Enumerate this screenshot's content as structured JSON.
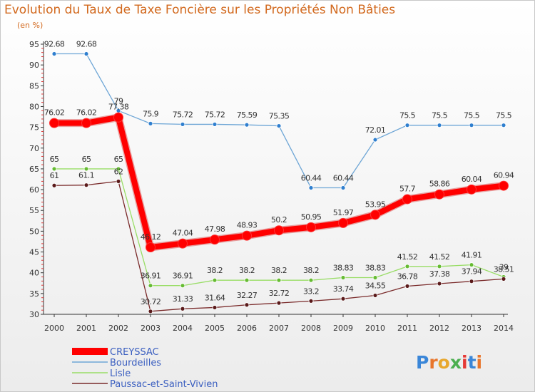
{
  "page": {
    "title": "Evolution du Taux de Taxe Foncière sur les Propriétés Non Bâties",
    "unit_label": "(en %)"
  },
  "chart_data": {
    "type": "line",
    "title": "Evolution du Taux de Taxe Foncière sur les Propriétés Non Bâties",
    "ylabel": "(en %)",
    "xlabel": "",
    "ylim": [
      30,
      95
    ],
    "yticks": [
      30,
      35,
      40,
      45,
      50,
      55,
      60,
      65,
      70,
      75,
      80,
      85,
      90,
      95
    ],
    "grid": false,
    "legend_position": "bottom-left",
    "x": [
      "2000",
      "2001",
      "2002",
      "2003",
      "2004",
      "2005",
      "2006",
      "2007",
      "2008",
      "2009",
      "2010",
      "2011",
      "2012",
      "2013",
      "2014"
    ],
    "series": [
      {
        "name": "CREYSSAC",
        "color": "#ff0000",
        "point_color": "#ff0000",
        "emphasis": true,
        "values": [
          76.02,
          76.02,
          77.38,
          46.12,
          47.04,
          47.98,
          48.93,
          50.2,
          50.95,
          51.97,
          53.95,
          57.7,
          58.86,
          60.04,
          60.94
        ],
        "labels": [
          "76.02",
          "76.02",
          "77.38",
          "46.12",
          "47.04",
          "47.98",
          "48.93",
          "50.2",
          "50.95",
          "51.97",
          "53.95",
          "57.7",
          "58.86",
          "60.04",
          "60.94"
        ]
      },
      {
        "name": "Bourdeilles",
        "color": "#6ea6d6",
        "point_color": "#2f7fcf",
        "values": [
          92.68,
          92.68,
          79,
          75.9,
          75.72,
          75.72,
          75.59,
          75.35,
          60.44,
          60.44,
          72.01,
          75.5,
          75.5,
          75.5,
          75.5
        ],
        "labels": [
          "92.68",
          "92.68",
          "79",
          "75.9",
          "75.72",
          "75.72",
          "75.59",
          "75.35",
          "60.44",
          "60.44",
          "72.01",
          "75.5",
          "75.5",
          "75.5",
          "75.5"
        ]
      },
      {
        "name": "Lisle",
        "color": "#99dd66",
        "point_color": "#66bb33",
        "values": [
          65,
          65,
          65,
          36.91,
          36.91,
          38.2,
          38.2,
          38.2,
          38.2,
          38.83,
          38.83,
          41.52,
          41.52,
          41.91,
          39
        ],
        "labels": [
          "65",
          "65",
          "65",
          "36.91",
          "36.91",
          "38.2",
          "38.2",
          "38.2",
          "38.2",
          "38.83",
          "38.83",
          "41.52",
          "41.52",
          "41.91",
          "39"
        ]
      },
      {
        "name": "Paussac-et-Saint-Vivien",
        "color": "#7a2b2b",
        "point_color": "#5a1a1a",
        "values": [
          61,
          61.1,
          62,
          30.72,
          31.33,
          31.64,
          32.27,
          32.72,
          33.2,
          33.74,
          34.55,
          36.78,
          37.38,
          37.94,
          38.51
        ],
        "labels": [
          "61",
          "61.1",
          "62",
          "30.72",
          "31.33",
          "31.64",
          "32.27",
          "32.72",
          "33.2",
          "33.74",
          "34.55",
          "36.78",
          "37.38",
          "37.94",
          "38.51"
        ]
      }
    ]
  },
  "logo": {
    "text": "Proxiti"
  }
}
